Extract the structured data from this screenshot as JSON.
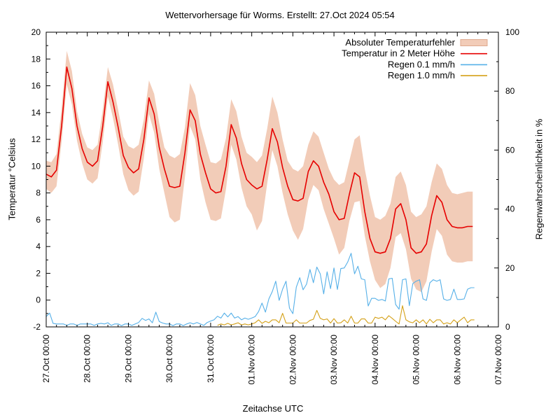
{
  "title": "Wettervorhersage für Worms. Erstellt: 27.Oct 2024 05:54",
  "chart_data": {
    "type": "line",
    "title": "Wettervorhersage für Worms. Erstellt: 27.Oct 2024 05:54",
    "xlabel": "Zeitachse UTC",
    "ylabel_left": "Temperatur °Celsius",
    "ylabel_right": "Regenwahrscheinlichkeit in %",
    "x_unit": "hours since 27.Oct 2024 00:00 UTC",
    "x_range_hours": [
      0,
      264
    ],
    "x_tick_step_hours": 24,
    "x_minor_step_hours": 6,
    "x_tick_labels": [
      "27.Oct 00:00",
      "28.Oct 00:00",
      "29.Oct 00:00",
      "30.Oct 00:00",
      "31.Oct 00:00",
      "01.Nov 00:00",
      "02.Nov 00:00",
      "03.Nov 00:00",
      "04.Nov 00:00",
      "05.Nov 00:00",
      "06.Nov 00:00",
      "07.Nov 00:00"
    ],
    "y_left": {
      "min": -2,
      "max": 20,
      "tick_step": 2,
      "minor_step": 1
    },
    "y_right": {
      "min": 0,
      "max": 100,
      "tick_step": 20,
      "minor_step": 10
    },
    "grid": false,
    "legend_position": "top-right-inside",
    "legend": [
      {
        "label": "Absoluter Temperaturfehler",
        "type": "band",
        "color": "#f2ccb8",
        "border_color": "#dfa98e"
      },
      {
        "label": "Temperatur in 2 Meter Höhe",
        "type": "line",
        "color": "#e60000"
      },
      {
        "label": "Regen 0.1 mm/h",
        "type": "line",
        "color": "#56b0e8"
      },
      {
        "label": "Regen 1.0 mm/h",
        "type": "line",
        "color": "#d4a017"
      }
    ],
    "series": [
      {
        "name": "Absoluter Temperaturfehler",
        "type": "band",
        "axis": "left",
        "start_hour": 0,
        "step_hours": 3,
        "fill": "#f2ccb8",
        "low": [
          8.3,
          8.0,
          8.5,
          11.8,
          16.1,
          14.6,
          11.9,
          10.2,
          9.0,
          8.7,
          9.1,
          11.8,
          15.2,
          13.6,
          11.6,
          9.4,
          8.2,
          7.8,
          8.1,
          10.6,
          13.9,
          12.5,
          9.8,
          8.0,
          6.2,
          5.8,
          6.0,
          9.2,
          13.0,
          12.0,
          9.0,
          7.3,
          6.0,
          5.9,
          6.1,
          8.3,
          11.6,
          10.5,
          8.4,
          7.0,
          6.4,
          5.2,
          5.9,
          8.7,
          11.2,
          10.0,
          8.0,
          6.4,
          5.2,
          4.5,
          5.3,
          7.5,
          8.6,
          8.2,
          6.8,
          5.7,
          4.6,
          3.4,
          3.9,
          5.9,
          7.3,
          7.4,
          4.8,
          2.9,
          1.5,
          0.9,
          1.2,
          2.4,
          4.7,
          5.0,
          3.8,
          1.6,
          0.8,
          0.6,
          1.4,
          3.6,
          5.3,
          4.8,
          3.4,
          2.9,
          2.8,
          2.8,
          2.9,
          2.9
        ],
        "high": [
          10.4,
          10.3,
          10.9,
          14.3,
          18.6,
          17.1,
          14.1,
          12.4,
          11.4,
          11.2,
          11.6,
          14.2,
          17.4,
          16.1,
          14.2,
          12.2,
          11.5,
          11.3,
          11.6,
          13.5,
          16.4,
          15.4,
          13.2,
          11.4,
          10.8,
          10.6,
          10.9,
          12.9,
          16.2,
          15.3,
          13.0,
          11.6,
          10.3,
          10.2,
          10.5,
          12.1,
          15.0,
          14.1,
          12.2,
          11.0,
          10.7,
          10.3,
          10.8,
          12.8,
          15.2,
          14.0,
          12.0,
          10.4,
          9.8,
          9.6,
          10.0,
          11.6,
          12.6,
          12.2,
          11.0,
          9.8,
          9.0,
          8.6,
          8.8,
          10.4,
          12.0,
          12.3,
          9.8,
          7.8,
          6.2,
          6.0,
          6.3,
          7.2,
          9.2,
          9.6,
          8.6,
          6.6,
          6.2,
          6.4,
          7.0,
          8.8,
          10.2,
          9.8,
          8.6,
          8.0,
          7.9,
          8.0,
          8.1,
          8.1
        ]
      },
      {
        "name": "Temperatur in 2 Meter Höhe",
        "type": "line",
        "axis": "left",
        "start_hour": 0,
        "step_hours": 3,
        "color": "#e60000",
        "width": 1.6,
        "values": [
          9.4,
          9.2,
          9.7,
          13.0,
          17.4,
          15.8,
          13.0,
          11.3,
          10.3,
          10.0,
          10.4,
          13.0,
          16.3,
          14.8,
          12.9,
          10.8,
          9.9,
          9.5,
          9.8,
          12.0,
          15.1,
          13.9,
          11.4,
          9.8,
          8.5,
          8.4,
          8.5,
          11.0,
          14.2,
          13.4,
          10.9,
          9.5,
          8.3,
          8.0,
          8.1,
          10.0,
          13.1,
          12.1,
          10.2,
          9.0,
          8.6,
          8.3,
          8.5,
          10.5,
          12.8,
          11.8,
          9.9,
          8.5,
          7.5,
          7.4,
          7.6,
          9.6,
          10.4,
          10.0,
          8.8,
          7.9,
          6.6,
          6.0,
          6.1,
          7.9,
          9.5,
          9.2,
          6.6,
          4.6,
          3.6,
          3.5,
          3.6,
          4.6,
          6.8,
          7.2,
          6.0,
          3.9,
          3.5,
          3.6,
          4.2,
          6.3,
          7.8,
          7.3,
          6.0,
          5.5,
          5.4,
          5.4,
          5.5,
          5.5
        ]
      },
      {
        "name": "Regen 0.1 mm/h",
        "type": "line",
        "axis": "right",
        "start_hour": 0,
        "step_hours": 2,
        "color": "#56b0e8",
        "width": 1.1,
        "values": [
          3.5,
          4.7,
          1.2,
          1.0,
          1.0,
          1.0,
          0.5,
          1.0,
          1.0,
          0.5,
          1.0,
          1.0,
          1.0,
          1.0,
          0.5,
          1.0,
          1.2,
          1.0,
          1.4,
          0.5,
          1.0,
          1.0,
          0.4,
          1.0,
          1.0,
          0.5,
          1.0,
          1.5,
          2.9,
          2.2,
          2.7,
          1.4,
          5.0,
          1.8,
          1.3,
          1.0,
          1.0,
          0.4,
          1.0,
          1.0,
          0.4,
          1.0,
          1.4,
          1.0,
          1.5,
          1.0,
          0.5,
          1.5,
          2.0,
          2.4,
          3.6,
          3.0,
          4.7,
          3.4,
          4.7,
          3.0,
          3.5,
          2.4,
          3.0,
          2.6,
          3.0,
          3.5,
          5.2,
          8.1,
          5.0,
          9.5,
          12.0,
          15.5,
          9.0,
          12.8,
          15.5,
          6.4,
          4.5,
          13.5,
          16.7,
          12.6,
          14.5,
          19.5,
          15.0,
          20.3,
          18.0,
          11.2,
          18.7,
          13.0,
          20.0,
          12.7,
          19.8,
          20.0,
          22.0,
          25.0,
          18.0,
          20.6,
          16.3,
          16.0,
          7.1,
          9.7,
          9.7,
          9.0,
          9.3,
          8.8,
          16.3,
          16.5,
          7.6,
          6.0,
          16.0,
          16.3,
          7.2,
          14.7,
          15.5,
          16.0,
          9.5,
          9.0,
          15.0,
          16.0,
          15.5,
          16.0,
          9.5,
          9.0,
          9.3,
          12.8,
          9.3,
          9.3,
          9.5,
          12.8,
          13.3,
          13.3
        ]
      },
      {
        "name": "Regen 1.0 mm/h",
        "type": "line",
        "axis": "right",
        "start_hour": 0,
        "step_hours": 2,
        "color": "#d4a017",
        "width": 1.1,
        "values": [
          null,
          null,
          null,
          null,
          null,
          null,
          null,
          null,
          null,
          null,
          null,
          null,
          null,
          null,
          null,
          null,
          null,
          null,
          null,
          null,
          null,
          null,
          null,
          null,
          null,
          null,
          null,
          null,
          null,
          null,
          null,
          null,
          null,
          null,
          null,
          null,
          null,
          null,
          null,
          null,
          null,
          null,
          null,
          null,
          null,
          null,
          null,
          null,
          null,
          null,
          0.5,
          1.0,
          0.7,
          1.2,
          0.7,
          1.0,
          1.4,
          0.7,
          1.0,
          0.7,
          1.0,
          1.4,
          2.4,
          1.2,
          1.9,
          1.4,
          2.4,
          2.4,
          1.4,
          4.6,
          1.3,
          1.3,
          1.3,
          2.4,
          1.3,
          1.3,
          1.3,
          2.2,
          2.6,
          5.6,
          2.9,
          2.4,
          2.7,
          1.3,
          2.8,
          1.3,
          1.4,
          2.4,
          1.3,
          3.6,
          1.3,
          1.3,
          2.7,
          2.7,
          1.3,
          1.3,
          3.3,
          2.9,
          3.3,
          2.4,
          3.8,
          2.9,
          1.9,
          1.0,
          7.2,
          2.4,
          1.7,
          1.4,
          2.4,
          1.4,
          2.4,
          1.0,
          2.6,
          1.4,
          2.4,
          2.4,
          1.0,
          1.4,
          1.0,
          2.4,
          1.4,
          2.4,
          3.3,
          1.4,
          2.4,
          2.4
        ]
      }
    ]
  }
}
